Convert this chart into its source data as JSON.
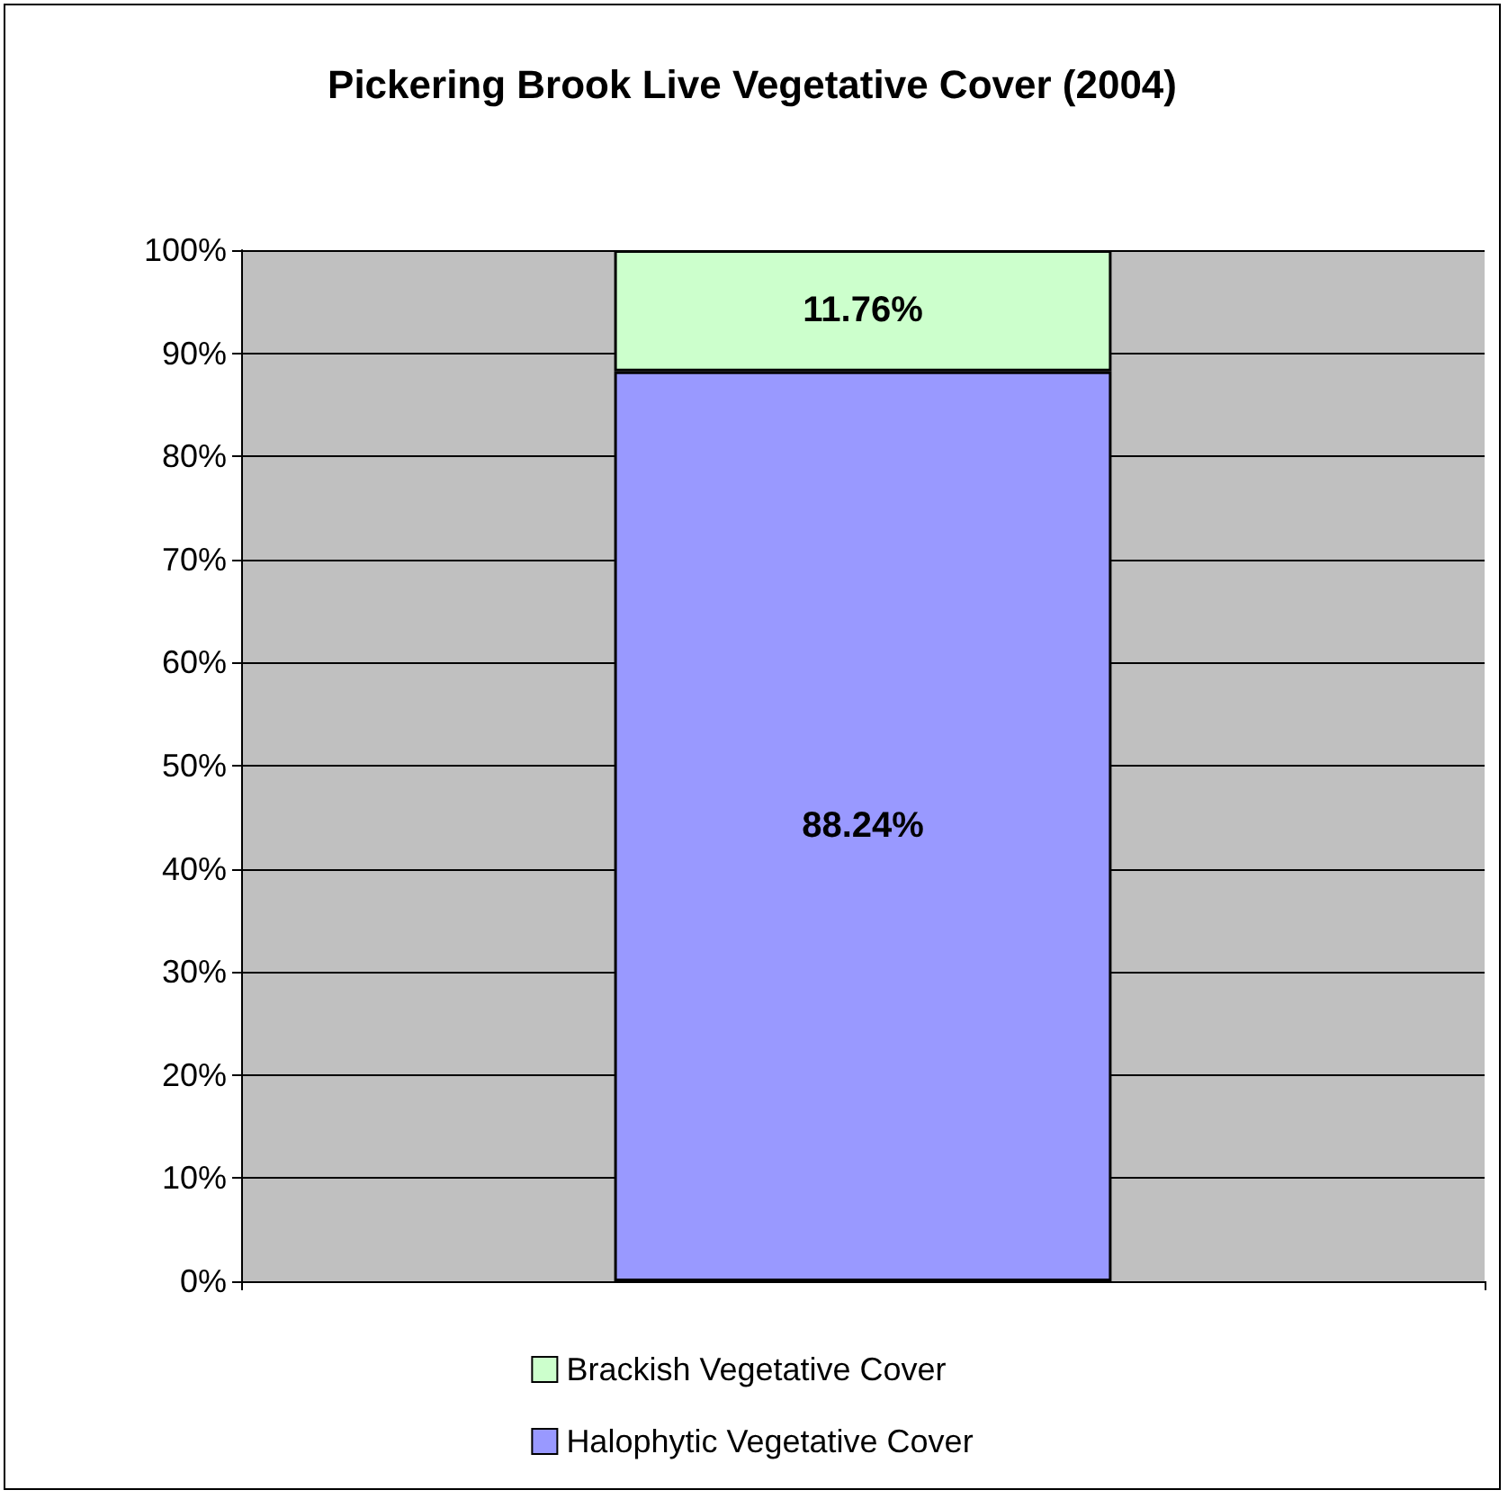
{
  "chart_data": {
    "type": "bar",
    "title": "Pickering Brook Live Vegetative Cover (2004)",
    "categories": [
      null
    ],
    "stacked": true,
    "series": [
      {
        "name": "Halophytic Vegetative Cover",
        "color": "#9999ff",
        "values": [
          88.24
        ],
        "value_labels": [
          "88.24%"
        ]
      },
      {
        "name": "Brackish Vegetative Cover",
        "color": "#ccffcc",
        "values": [
          11.76
        ],
        "value_labels": [
          "11.76%"
        ]
      }
    ],
    "ylim": [
      0,
      100
    ],
    "yticks": [
      {
        "value": 0,
        "label": "0%"
      },
      {
        "value": 10,
        "label": "10%"
      },
      {
        "value": 20,
        "label": "20%"
      },
      {
        "value": 30,
        "label": "30%"
      },
      {
        "value": 40,
        "label": "40%"
      },
      {
        "value": 50,
        "label": "50%"
      },
      {
        "value": 60,
        "label": "60%"
      },
      {
        "value": 70,
        "label": "70%"
      },
      {
        "value": 80,
        "label": "80%"
      },
      {
        "value": 90,
        "label": "90%"
      },
      {
        "value": 100,
        "label": "100%"
      }
    ],
    "grid": "y",
    "legend": "bottom"
  }
}
